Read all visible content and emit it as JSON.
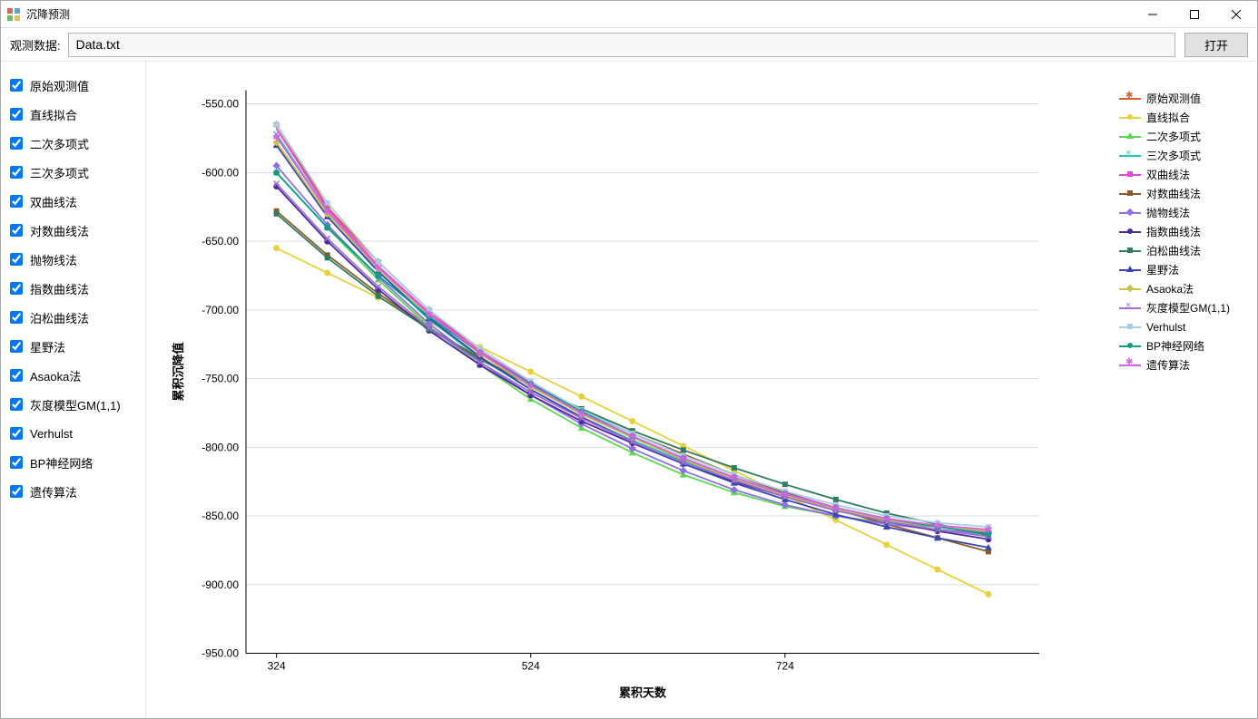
{
  "window": {
    "title": "沉降预测"
  },
  "toolbar": {
    "data_label": "观测数据:",
    "file_value": "Data.txt",
    "open_label": "打开"
  },
  "sidebar": {
    "items": [
      {
        "label": "原始观测值",
        "checked": true
      },
      {
        "label": "直线拟合",
        "checked": true
      },
      {
        "label": "二次多项式",
        "checked": true
      },
      {
        "label": "三次多项式",
        "checked": true
      },
      {
        "label": "双曲线法",
        "checked": true
      },
      {
        "label": "对数曲线法",
        "checked": true
      },
      {
        "label": "抛物线法",
        "checked": true
      },
      {
        "label": "指数曲线法",
        "checked": true
      },
      {
        "label": "泊松曲线法",
        "checked": true
      },
      {
        "label": "星野法",
        "checked": true
      },
      {
        "label": "Asaoka法",
        "checked": true
      },
      {
        "label": "灰度模型GM(1,1)",
        "checked": true
      },
      {
        "label": "Verhulst",
        "checked": true
      },
      {
        "label": "BP神经网络",
        "checked": true
      },
      {
        "label": "遗传算法",
        "checked": true
      }
    ]
  },
  "chart": {
    "type": "line",
    "xlabel": "累积天数",
    "ylabel": "累积沉降值",
    "label_fontsize": 13,
    "xlim": [
      300,
      924
    ],
    "ylim": [
      -950,
      -540
    ],
    "xticks": [
      324,
      524,
      724
    ],
    "yticks": [
      -550,
      -600,
      -650,
      -700,
      -750,
      -800,
      -850,
      -900,
      -950
    ],
    "ytick_format": "fixed2",
    "background_color": "#ffffff",
    "grid_color": "#d0d0d0",
    "axis_color": "#000000",
    "x_data": [
      324,
      364,
      404,
      444,
      484,
      524,
      564,
      604,
      644,
      684,
      724,
      764,
      804,
      844,
      884
    ],
    "series": [
      {
        "name": "原始观测值",
        "color": "#d95f2f",
        "marker": "star",
        "data": [
          -565,
          -625,
          -665,
          -700,
          -730,
          -755,
          -775,
          -792,
          -808,
          -822,
          -835,
          -845,
          -852,
          -857,
          -860
        ]
      },
      {
        "name": "直线拟合",
        "color": "#e8d13c",
        "marker": "circle",
        "data": [
          -655,
          -673,
          -691,
          -709,
          -727,
          -745,
          -763,
          -781,
          -799,
          -817,
          -835,
          -853,
          -871,
          -889,
          -907
        ]
      },
      {
        "name": "二次多项式",
        "color": "#5bd84f",
        "marker": "triangle",
        "data": [
          -600,
          -640,
          -678,
          -712,
          -740,
          -765,
          -786,
          -804,
          -820,
          -833,
          -843,
          -850,
          -855,
          -858,
          -860
        ]
      },
      {
        "name": "三次多项式",
        "color": "#22c7b4",
        "marker": "x",
        "data": [
          -572,
          -628,
          -672,
          -707,
          -735,
          -758,
          -778,
          -795,
          -810,
          -824,
          -836,
          -846,
          -854,
          -860,
          -864
        ]
      },
      {
        "name": "双曲线法",
        "color": "#e647d5",
        "marker": "line",
        "data": [
          -568,
          -626,
          -668,
          -702,
          -730,
          -753,
          -773,
          -790,
          -806,
          -820,
          -833,
          -844,
          -853,
          -858,
          -862
        ]
      },
      {
        "name": "对数曲线法",
        "color": "#8b5a2b",
        "marker": "square",
        "data": [
          -628,
          -660,
          -688,
          -713,
          -735,
          -755,
          -773,
          -790,
          -805,
          -820,
          -833,
          -845,
          -856,
          -866,
          -876
        ]
      },
      {
        "name": "抛物线法",
        "color": "#8f6fe6",
        "marker": "diamond",
        "data": [
          -595,
          -638,
          -676,
          -710,
          -738,
          -762,
          -783,
          -801,
          -817,
          -831,
          -842,
          -850,
          -856,
          -860,
          -863
        ]
      },
      {
        "name": "指数曲线法",
        "color": "#4c2a9e",
        "marker": "circle",
        "data": [
          -610,
          -650,
          -685,
          -715,
          -740,
          -762,
          -781,
          -797,
          -812,
          -825,
          -836,
          -846,
          -854,
          -861,
          -867
        ]
      },
      {
        "name": "泊松曲线法",
        "color": "#2e7d5f",
        "marker": "square",
        "data": [
          -630,
          -662,
          -690,
          -714,
          -736,
          -755,
          -772,
          -788,
          -802,
          -815,
          -827,
          -838,
          -848,
          -856,
          -864
        ]
      },
      {
        "name": "星野法",
        "color": "#3949ab",
        "marker": "triangle",
        "data": [
          -580,
          -632,
          -672,
          -706,
          -734,
          -758,
          -778,
          -796,
          -812,
          -826,
          -838,
          -849,
          -858,
          -866,
          -873
        ]
      },
      {
        "name": "Asaoka法",
        "color": "#c9c542",
        "marker": "diamond",
        "data": [
          -578,
          -630,
          -670,
          -704,
          -732,
          -756,
          -776,
          -793,
          -809,
          -823,
          -835,
          -845,
          -853,
          -858,
          -861
        ]
      },
      {
        "name": "灰度模型GM(1,1)",
        "color": "#a26fd6",
        "marker": "x",
        "data": [
          -608,
          -648,
          -683,
          -713,
          -738,
          -760,
          -779,
          -796,
          -811,
          -824,
          -836,
          -846,
          -854,
          -860,
          -865
        ]
      },
      {
        "name": "Verhulst",
        "color": "#a9cee3",
        "marker": "square",
        "data": [
          -565,
          -622,
          -665,
          -700,
          -728,
          -752,
          -773,
          -790,
          -806,
          -820,
          -832,
          -842,
          -850,
          -855,
          -858
        ]
      },
      {
        "name": "BP神经网络",
        "color": "#0c9e8a",
        "marker": "circle",
        "data": [
          -600,
          -640,
          -675,
          -705,
          -731,
          -754,
          -774,
          -792,
          -808,
          -822,
          -834,
          -844,
          -852,
          -858,
          -863
        ]
      },
      {
        "name": "遗传算法",
        "color": "#d563e8",
        "marker": "star",
        "data": [
          -574,
          -628,
          -669,
          -703,
          -731,
          -755,
          -775,
          -792,
          -808,
          -822,
          -834,
          -844,
          -852,
          -857,
          -860
        ]
      }
    ]
  }
}
